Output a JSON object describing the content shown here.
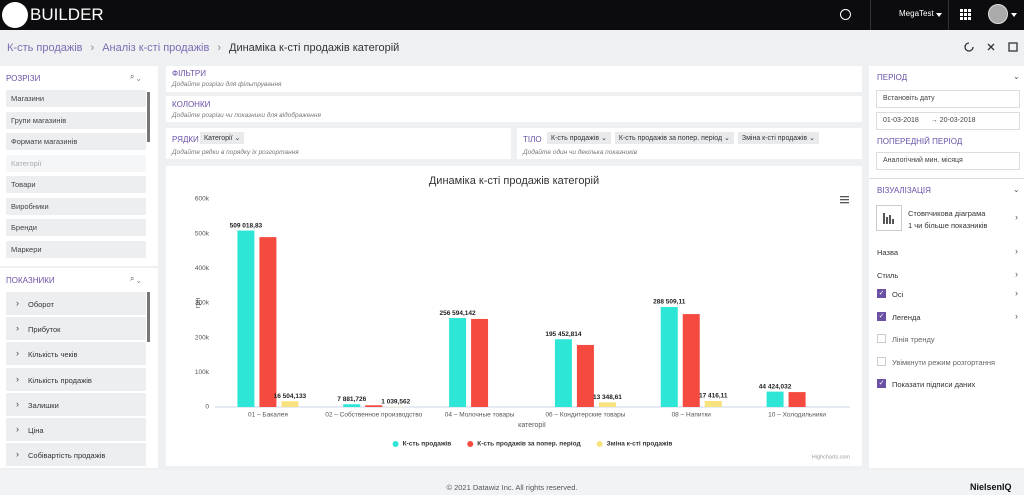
{
  "header": {
    "logo": "BUILDER",
    "user": "MegaTest"
  },
  "breadcrumbs": [
    "К-сть продажів",
    "Аналіз к-сті продажів",
    "Динаміка к-сті продажів категорій"
  ],
  "left_panel": {
    "slices_title": "РОЗРІЗИ",
    "slices": [
      {
        "label": "Магазини",
        "disabled": false
      },
      {
        "label": "Групи магазинів",
        "disabled": false
      },
      {
        "label": "Формати магазинів",
        "disabled": false
      },
      {
        "label": "Категорії",
        "disabled": true
      },
      {
        "label": "Товари",
        "disabled": false
      },
      {
        "label": "Виробники",
        "disabled": false
      },
      {
        "label": "Бренди",
        "disabled": false
      },
      {
        "label": "Маркери",
        "disabled": false
      }
    ],
    "metrics_title": "ПОКАЗНИКИ",
    "metrics": [
      "Оборот",
      "Прибуток",
      "Кількість чеків",
      "Кількість продажів",
      "Залишки",
      "Ціна",
      "Собівартість продажів"
    ]
  },
  "builder": {
    "filters": {
      "title": "ФІЛЬТРИ",
      "hint": "Додайте розрізи для фільтрування"
    },
    "columns": {
      "title": "КОЛОНКИ",
      "hint": "Додайте розрізи чи показники для відображення"
    },
    "rows": {
      "title": "РЯДКИ",
      "chips": [
        "Категорії"
      ],
      "hint": "Додайте рядки в порядку їх розгортання"
    },
    "body": {
      "title": "ТІЛО",
      "chips": [
        "К-сть продажів",
        "К-сть продажів за попер. період",
        "Зміна к-сті продажів"
      ],
      "hint": "Додайте один чи декілька показників"
    }
  },
  "chart_data": {
    "type": "bar",
    "title": "Динаміка к-сті продажів категорій",
    "x_label": "категорії",
    "y_label": "грн",
    "credit": "Highcharts.com",
    "categories": [
      "01 – Бакалея",
      "02 – Собственное производство",
      "04 – Молочные товары",
      "06 – Кондитерские товары",
      "08 – Напитки",
      "10 – Холодильники"
    ],
    "series": [
      {
        "name": "К-сть продажів",
        "color": "#2ee6d6",
        "values": [
          509018.83,
          7881.726,
          256594.142,
          195452.814,
          288509.11,
          44424.032
        ],
        "value_labels": [
          "509 018,83",
          "7 881,726",
          "256 594,142",
          "195 452,814",
          "288 509,11",
          "44 424,032"
        ]
      },
      {
        "name": "К-сть продажів за попер. період",
        "color": "#f44a3f",
        "values": [
          490000,
          5000,
          254000,
          179000,
          268000,
          43000
        ]
      },
      {
        "name": "Зміна к-сті продажів",
        "color": "#f7e27e",
        "values": [
          16504.133,
          1039.562,
          null,
          13348.61,
          17416.11,
          null
        ],
        "value_labels": [
          "16 504,133",
          "1 039,562",
          null,
          "13 348,61",
          "17 416,11",
          null
        ]
      }
    ],
    "ylim": [
      0,
      600000
    ],
    "yticks": [
      0,
      {
        "value": 100000,
        "label": "100k"
      },
      {
        "value": 200000,
        "label": "200k"
      },
      {
        "value": 300000,
        "label": "300k"
      },
      {
        "value": 400000,
        "label": "400k"
      },
      {
        "value": 500000,
        "label": "500k"
      },
      {
        "value": 600000,
        "label": "600k"
      }
    ],
    "grid": false,
    "legend": "bottom"
  },
  "right_panel": {
    "period_title": "ПЕРІОД",
    "date_placeholder": "Встановіть дату",
    "date_from": "01-03-2018",
    "date_to": "20-03-2018",
    "prev_period_title": "ПОПЕРЕДНІЙ ПЕРІОД",
    "prev_period": "Аналогічний мин. місяця",
    "visualization_title": "ВІЗУАЛІЗАЦІЯ",
    "chart_type": "Стовпчикова діаграма",
    "chart_type_hint": "1 чи більше показників",
    "sections": [
      "Назва",
      "Стиль"
    ],
    "options": [
      {
        "label": "Осі",
        "checked": true
      },
      {
        "label": "Легенда",
        "checked": true
      },
      {
        "label": "Лінія тренду",
        "checked": false
      },
      {
        "label": "Увімкнути режим розгортання",
        "checked": false
      },
      {
        "label": "Показати підписи даних",
        "checked": true
      }
    ]
  },
  "footer": {
    "copyright": "© 2021 Datawiz Inc. All rights reserved.",
    "brand": "NielsenIQ"
  }
}
